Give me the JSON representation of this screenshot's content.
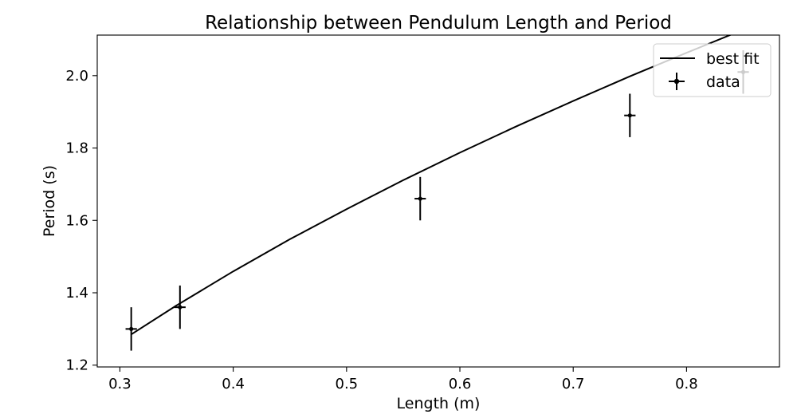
{
  "chart_data": {
    "type": "scatter",
    "title": "Relationship between Pendulum Length and Period",
    "xlabel": "Length (m)",
    "ylabel": "Period (s)",
    "xlim": [
      0.28,
      0.882
    ],
    "ylim": [
      1.195,
      2.112
    ],
    "xticks": [
      0.3,
      0.4,
      0.5,
      0.6,
      0.7,
      0.8
    ],
    "xtick_labels": [
      "0.3",
      "0.4",
      "0.5",
      "0.6",
      "0.7",
      "0.8"
    ],
    "yticks": [
      1.2,
      1.4,
      1.6,
      1.8,
      2.0
    ],
    "ytick_labels": [
      "1.2",
      "1.4",
      "1.6",
      "1.8",
      "2.0"
    ],
    "grid": false,
    "legend_position": "top-right",
    "series": [
      {
        "name": "data",
        "kind": "errorbar",
        "x": [
          0.31,
          0.353,
          0.565,
          0.75,
          0.85
        ],
        "y": [
          1.3,
          1.36,
          1.66,
          1.89,
          2.01
        ],
        "yerr": [
          0.06,
          0.06,
          0.06,
          0.06,
          0.06
        ],
        "xerr": [
          0.005,
          0.005,
          0.005,
          0.005,
          0.005
        ]
      },
      {
        "name": "best fit",
        "kind": "line",
        "x": [
          0.31,
          0.35,
          0.4,
          0.45,
          0.5,
          0.55,
          0.6,
          0.65,
          0.7,
          0.75,
          0.8,
          0.85
        ],
        "y": [
          1.285,
          1.365,
          1.459,
          1.548,
          1.631,
          1.711,
          1.787,
          1.86,
          1.93,
          1.998,
          2.063,
          2.127
        ]
      }
    ],
    "colors": {
      "line": "#000000",
      "markers": "#000000",
      "legend_border": "#cccccc"
    }
  }
}
